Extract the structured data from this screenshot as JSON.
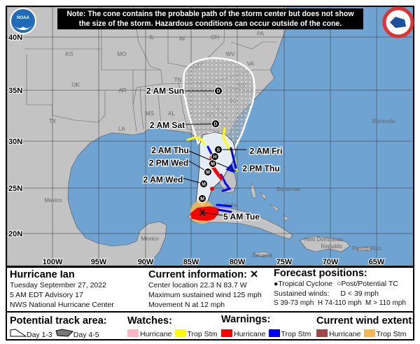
{
  "note": {
    "line1": "Note: The cone contains the probable path of the storm center but does not show",
    "line2": "the size of the storm. Hazardous conditions can occur outside of the cone."
  },
  "logos": {
    "left": "NOAA",
    "right": "National Weather Service"
  },
  "colors": {
    "water": "#6fa3d1",
    "land": "#c3c3c3",
    "cone_day13": "#e4edf4",
    "hurricane_warning": "#ff0000",
    "trop_storm_warning": "#0000ff",
    "hurricane_watch": "#ffb6c1",
    "trop_storm_watch": "#ffff00",
    "hurricane_wind": "#a04848",
    "trop_storm_wind": "#f5b850"
  },
  "map": {
    "lat_labels": [
      "40N",
      "35N",
      "30N",
      "25N",
      "20N"
    ],
    "lon_labels": [
      "100W",
      "95W",
      "90W",
      "85W",
      "80W",
      "75W",
      "70W",
      "65W"
    ],
    "places": [
      "KS",
      "MO",
      "IL",
      "IN",
      "OH",
      "WV",
      "KY",
      "VA",
      "TN",
      "NC",
      "SC",
      "GA",
      "AL",
      "MS",
      "AR",
      "OK",
      "TX",
      "LA",
      "PA",
      "Mexico",
      "Mexico",
      "Bahamas",
      "Bermuda",
      "Cuba",
      "Jamaica",
      "Haiti Dominican",
      "Republic",
      "Puerto Rico"
    ],
    "track": [
      {
        "time": "5 AM Tue",
        "marker": "X"
      },
      {
        "time": "",
        "marker": "M"
      },
      {
        "time": "2 AM Wed",
        "marker": "M"
      },
      {
        "time": "2 PM Wed",
        "marker": "M"
      },
      {
        "time": "2 AM Thu",
        "marker": "M"
      },
      {
        "time": "2 PM Thu",
        "marker": "H"
      },
      {
        "time": "2 AM Fri",
        "marker": "S"
      },
      {
        "time": "2 AM Sat",
        "marker": "D"
      },
      {
        "time": "2 AM Sun",
        "marker": "D"
      }
    ]
  },
  "legend": {
    "storm": {
      "name": "Hurricane Ian",
      "date": "Tuesday September 27, 2022",
      "advisory": "5 AM EDT Advisory 17",
      "center": "NWS National Hurricane Center"
    },
    "current": {
      "title": "Current information:",
      "symbol": "✕",
      "location": "Center location 22.3 N 83.7 W",
      "wind": "Maximum sustained wind 125 mph",
      "movement": "Movement N at 12 mph"
    },
    "forecast": {
      "title": "Forecast positions:",
      "tc": "Tropical Cyclone",
      "post": "Post/Potential TC",
      "sustained": "Sustained winds:",
      "d": "D < 39 mph",
      "s": "S 39-73 mph",
      "hh": "H 74-110 mph",
      "m": "M > 110 mph"
    },
    "track_area": {
      "title": "Potential track area:",
      "day13": "Day 1-3",
      "day45": "Day 4-5"
    },
    "watches": {
      "title": "Watches:",
      "hurricane": "Hurricane",
      "trop": "Trop Stm"
    },
    "warnings": {
      "title": "Warnings:",
      "hurricane": "Hurricane",
      "trop": "Trop Stm"
    },
    "wind": {
      "title": "Current wind extent:",
      "hurricane": "Hurricane",
      "trop": "Trop Stm"
    }
  }
}
